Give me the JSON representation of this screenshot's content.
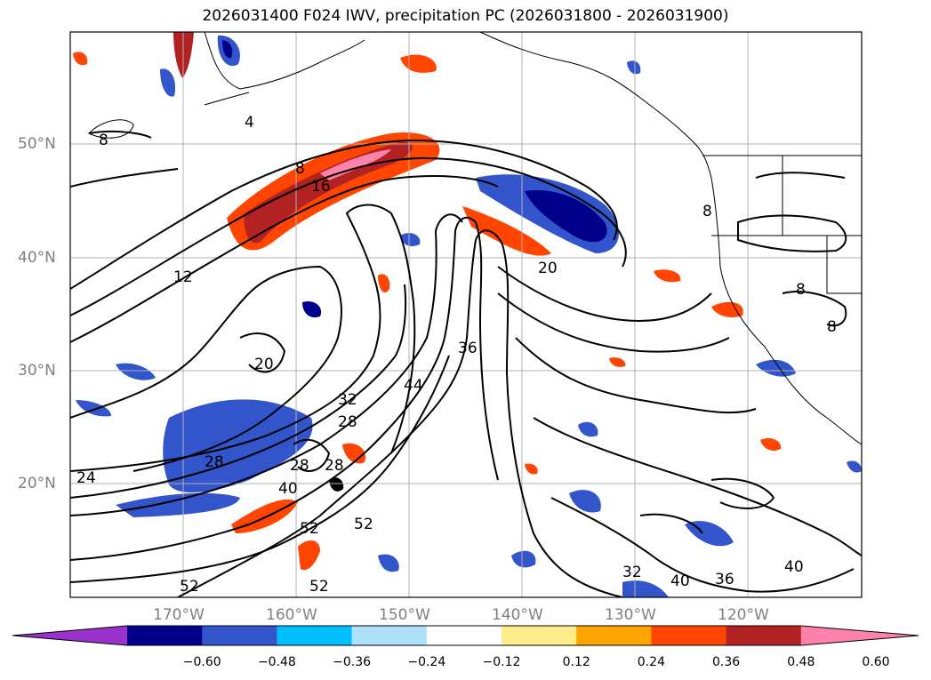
{
  "title": "2026031400 F024 IWV, precipitation PC (2026031800 - 2026031900)",
  "map": {
    "lat_labels": [
      "50°N",
      "40°N",
      "30°N",
      "20°N"
    ],
    "lon_labels": [
      "170°W",
      "160°W",
      "150°W",
      "140°W",
      "130°W",
      "120°W"
    ],
    "contour_labels": [
      "4",
      "8",
      "8",
      "16",
      "12",
      "20",
      "20",
      "36",
      "32",
      "28",
      "28",
      "24",
      "28",
      "28",
      "40",
      "44",
      "52",
      "52",
      "52",
      "52",
      "32",
      "40",
      "36",
      "40",
      "8",
      "8",
      "8"
    ]
  },
  "colorbar": {
    "labels": [
      "−0.60",
      "−0.48",
      "−0.36",
      "−0.24",
      "−0.12",
      "0.12",
      "0.24",
      "0.36",
      "0.48",
      "0.60"
    ],
    "colors": [
      "#9932cc",
      "#00008b",
      "#3355cc",
      "#00bfff",
      "#afe0fa",
      "#ffffff",
      "#ffec8b",
      "#ffa500",
      "#ff4500",
      "#b22222",
      "#ff82ab"
    ]
  }
}
